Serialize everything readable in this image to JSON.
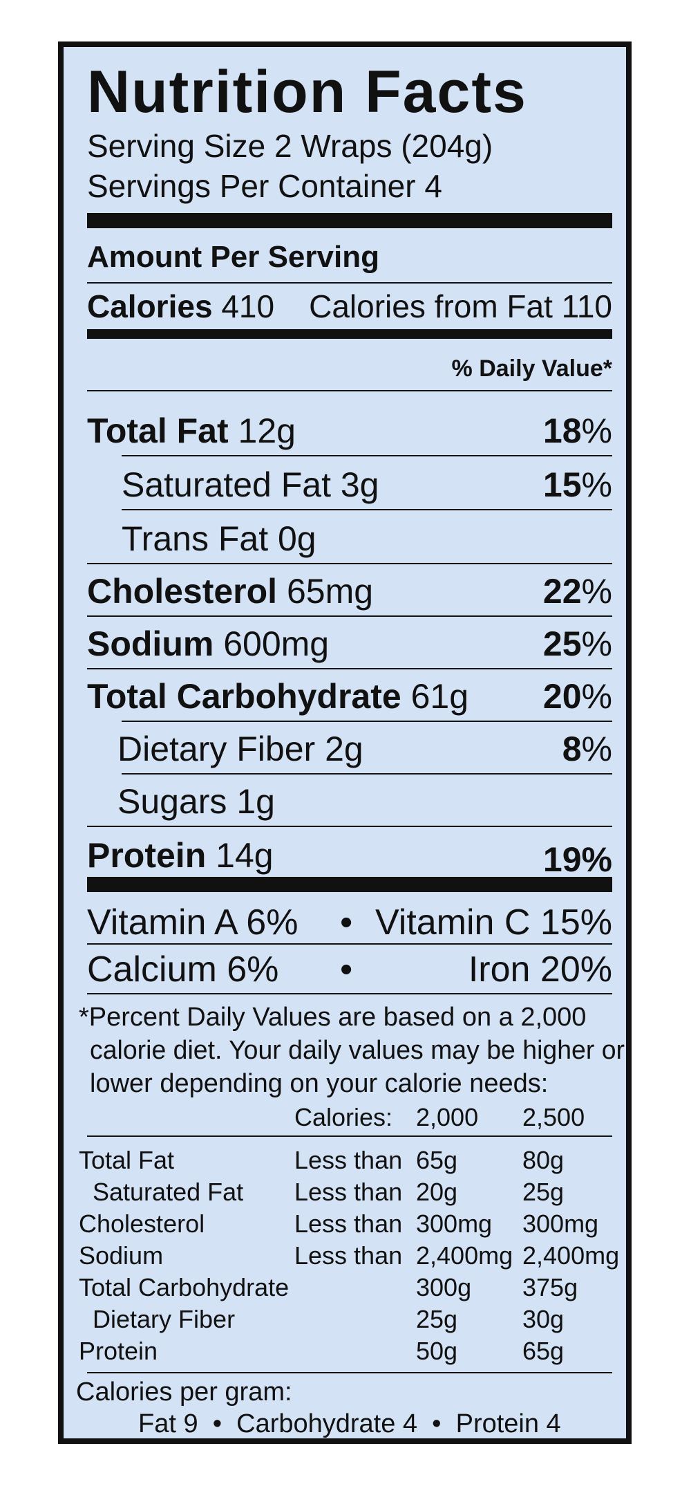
{
  "title": "Nutrition Facts",
  "serving_size": "Serving Size 2 Wraps (204g)",
  "servings_per_container": "Servings Per Container 4",
  "amount_per_serving": "Amount Per Serving",
  "calories_label": "Calories",
  "calories_value": "410",
  "calories_from_fat": "Calories from Fat 110",
  "daily_value_header": "% Daily Value*",
  "nutrients": [
    {
      "name": "Total Fat",
      "amount": "12g",
      "dv": "18",
      "pct": "%"
    },
    {
      "name": "Saturated Fat",
      "amount": "3g",
      "dv": "15",
      "pct": "%"
    },
    {
      "name": "Trans Fat",
      "amount": "0g",
      "dv": "",
      "pct": ""
    },
    {
      "name": "Cholesterol",
      "amount": "65mg",
      "dv": "22",
      "pct": "%"
    },
    {
      "name": "Sodium",
      "amount": "600mg",
      "dv": "25",
      "pct": "%"
    },
    {
      "name": "Total Carbohydrate",
      "amount": "61g",
      "dv": "20",
      "pct": "%"
    },
    {
      "name": "Dietary Fiber",
      "amount": "2g",
      "dv": "8",
      "pct": "%"
    },
    {
      "name": "Sugars",
      "amount": "1g",
      "dv": "",
      "pct": ""
    },
    {
      "name": "Protein",
      "amount": "14g",
      "dv": "19%",
      "pct": ""
    }
  ],
  "vitamins": {
    "vitamin_a": "Vitamin A 6%",
    "vitamin_c": "Vitamin C 15%",
    "calcium": "Calcium 6%",
    "iron": "Iron 20%",
    "bullet": "•"
  },
  "footnote": {
    "line1": "*Percent Daily Values are based on a 2,000",
    "line2": "calorie diet. Your daily values may be higher or",
    "line3": "lower depending on your calorie needs:"
  },
  "dv_table": {
    "header": [
      "Calories:",
      "2,000",
      "2,500"
    ],
    "rows": [
      [
        "Total Fat",
        "Less than",
        "65g",
        "80g"
      ],
      [
        "Saturated Fat",
        "Less than",
        "20g",
        "25g"
      ],
      [
        "Cholesterol",
        "Less than",
        "300mg",
        "300mg"
      ],
      [
        "Sodium",
        "Less than",
        "2,400mg",
        "2,400mg"
      ],
      [
        "Total Carbohydrate",
        "",
        "300g",
        "375g"
      ],
      [
        "Dietary Fiber",
        "",
        "25g",
        "30g"
      ],
      [
        "Protein",
        "",
        "50g",
        "65g"
      ]
    ]
  },
  "calories_per_gram": {
    "label": "Calories per gram:",
    "values": "Fat 9  •  Carbohydrate 4  •  Protein 4"
  },
  "colors": {
    "background": "#d3e2f4",
    "ink": "#111111"
  }
}
